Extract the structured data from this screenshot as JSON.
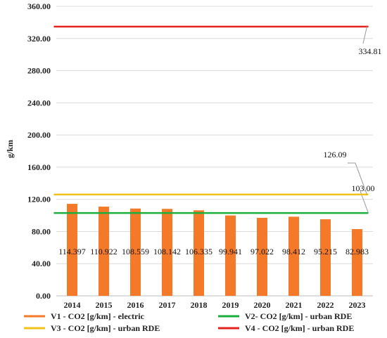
{
  "chart_data": {
    "type": "bar",
    "ylabel": "g/km",
    "ylim": [
      0,
      360
    ],
    "yticks": [
      "0.00",
      "40.00",
      "80.00",
      "120.00",
      "160.00",
      "200.00",
      "240.00",
      "280.00",
      "320.00",
      "360.00"
    ],
    "grid": true,
    "legend_position": "bottom",
    "categories": [
      "2014",
      "2015",
      "2016",
      "2017",
      "2018",
      "2019",
      "2020",
      "2021",
      "2022",
      "2023"
    ],
    "bar_series": {
      "name": "V1 - CO2 [g/km] - electric",
      "color": "#f47a2a",
      "values": [
        114.397,
        110.922,
        108.559,
        108.142,
        106.335,
        99.941,
        97.022,
        98.412,
        95.215,
        82.983
      ],
      "labels": [
        "114.397",
        "110.922",
        "108.559",
        "108.142",
        "106.335",
        "99.941",
        "97.022",
        "98.412",
        "95.215",
        "82.983"
      ]
    },
    "line_series": [
      {
        "name": "V2- CO2 [g/km] - urban RDE",
        "color": "#1aae3c",
        "value": 103.0,
        "label": "103.00"
      },
      {
        "name": "V3 - CO2 [g/km] - urban RDE",
        "color": "#f2c11a",
        "value": 126.09,
        "label": "126.09"
      },
      {
        "name": "V4 - CO2 [g/km] - urban RDE",
        "color": "#e4211c",
        "value": 334.81,
        "label": "334.81"
      }
    ]
  }
}
